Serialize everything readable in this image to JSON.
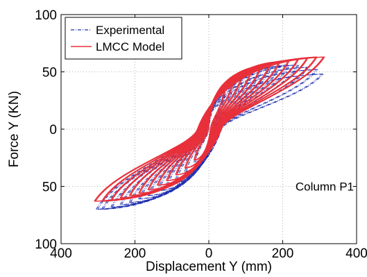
{
  "chart_data": {
    "type": "line",
    "title": "",
    "xlabel": "Displacement Y (mm)",
    "ylabel": "Force Y (KN)",
    "xlim": [
      -400,
      400
    ],
    "ylim": [
      -100,
      100
    ],
    "x_ticks": [
      -400,
      -200,
      0,
      200,
      400
    ],
    "x_tick_labels": [
      "400",
      "200",
      "0",
      "200",
      "400"
    ],
    "y_ticks": [
      -100,
      -50,
      0,
      50,
      100
    ],
    "y_tick_labels": [
      "100",
      "50",
      "0",
      "50",
      "100"
    ],
    "grid": true,
    "legend_position": "top-left",
    "annotation": "Column P1",
    "series": [
      {
        "name": "Experimental",
        "color": "#1f2fb0",
        "style": "dash-dot",
        "cycles": [
          {
            "amp": 40,
            "fmax": 30,
            "fmin": -29
          },
          {
            "amp": 65,
            "fmax": 39,
            "fmin": -37
          },
          {
            "amp": 90,
            "fmax": 45,
            "fmin": -44
          },
          {
            "amp": 115,
            "fmax": 49,
            "fmin": -49
          },
          {
            "amp": 140,
            "fmax": 52,
            "fmin": -54
          },
          {
            "amp": 165,
            "fmax": 54,
            "fmin": -58
          },
          {
            "amp": 190,
            "fmax": 55,
            "fmin": -61
          },
          {
            "amp": 215,
            "fmax": 56,
            "fmin": -64
          },
          {
            "amp": 240,
            "fmax": 56,
            "fmin": -66
          },
          {
            "amp": 265,
            "fmax": 54,
            "fmin": -68
          },
          {
            "amp": 290,
            "fmax": 52,
            "fmin": -70
          },
          {
            "amp": 305,
            "fmax": 48,
            "fmin": -70
          }
        ]
      },
      {
        "name": "LMCC Model",
        "color": "#e8303a",
        "style": "solid",
        "cycles": [
          {
            "amp": 40,
            "fmax": 32,
            "fmin": -27
          },
          {
            "amp": 65,
            "fmax": 42,
            "fmin": -34
          },
          {
            "amp": 90,
            "fmax": 48,
            "fmin": -40
          },
          {
            "amp": 115,
            "fmax": 52,
            "fmin": -45
          },
          {
            "amp": 140,
            "fmax": 55,
            "fmin": -49
          },
          {
            "amp": 165,
            "fmax": 57,
            "fmin": -53
          },
          {
            "amp": 190,
            "fmax": 59,
            "fmin": -56
          },
          {
            "amp": 215,
            "fmax": 60,
            "fmin": -58
          },
          {
            "amp": 240,
            "fmax": 61,
            "fmin": -60
          },
          {
            "amp": 265,
            "fmax": 62,
            "fmin": -62
          },
          {
            "amp": 290,
            "fmax": 63,
            "fmin": -63
          },
          {
            "amp": 310,
            "fmax": 63,
            "fmin": -63
          }
        ]
      }
    ]
  }
}
